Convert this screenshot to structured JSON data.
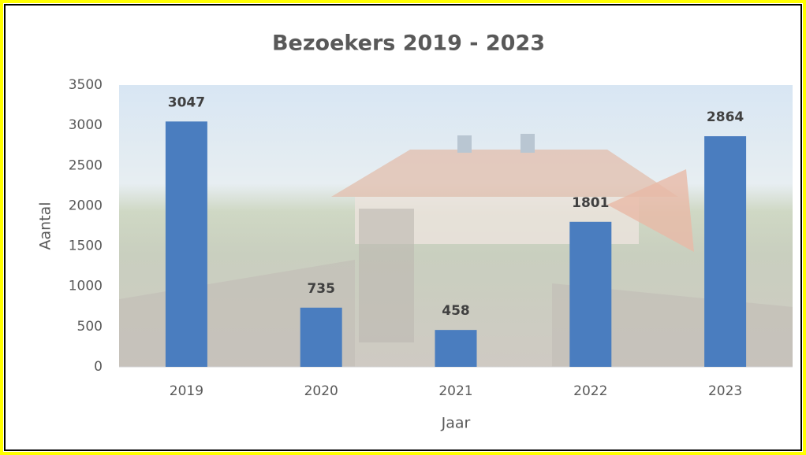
{
  "chart_data": {
    "type": "bar",
    "title": "Bezoekers 2019 - 2023",
    "x_label": "Jaar",
    "y_label": "Aantal",
    "categories": [
      "2019",
      "2020",
      "2021",
      "2022",
      "2023"
    ],
    "values": [
      3047,
      735,
      458,
      1801,
      2864
    ],
    "color": "#4a7dbf",
    "ylim": [
      0,
      3500
    ],
    "yticks": [
      0,
      500,
      1000,
      1500,
      2000,
      2500,
      3000,
      3500
    ],
    "grid": false
  }
}
